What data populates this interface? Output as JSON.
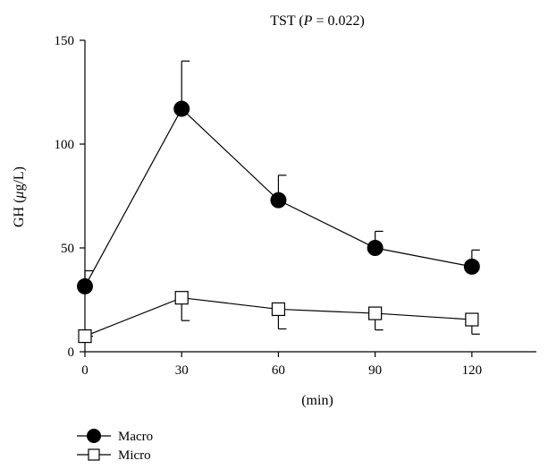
{
  "chart_data": {
    "type": "line",
    "title_prefix": "TST (",
    "title_p": "P",
    "title_suffix": " = 0.022)",
    "xlabel": "(min)",
    "ylabel_prefix": "GH (",
    "ylabel_mu": "μ",
    "ylabel_suffix": "g/L)",
    "x": [
      0,
      30,
      60,
      90,
      120
    ],
    "x_ticks": [
      "0",
      "30",
      "60",
      "90",
      "120"
    ],
    "y_ticks": [
      "0",
      "50",
      "100",
      "150"
    ],
    "xlim": [
      0,
      140
    ],
    "ylim": [
      0,
      150
    ],
    "grid": false,
    "legend_position": "bottom-left",
    "series": [
      {
        "name": "Macro",
        "marker": "filled-circle",
        "color": "#000000",
        "values": [
          31.5,
          117,
          73,
          50,
          41
        ],
        "error_upper": [
          39,
          140,
          85,
          58,
          49
        ]
      },
      {
        "name": "Micro",
        "marker": "open-square",
        "color": "#000000",
        "values": [
          7.5,
          26,
          20.5,
          18.5,
          15.5
        ],
        "error_lower": [
          7.5,
          15,
          11,
          10.5,
          8.5
        ]
      }
    ]
  }
}
